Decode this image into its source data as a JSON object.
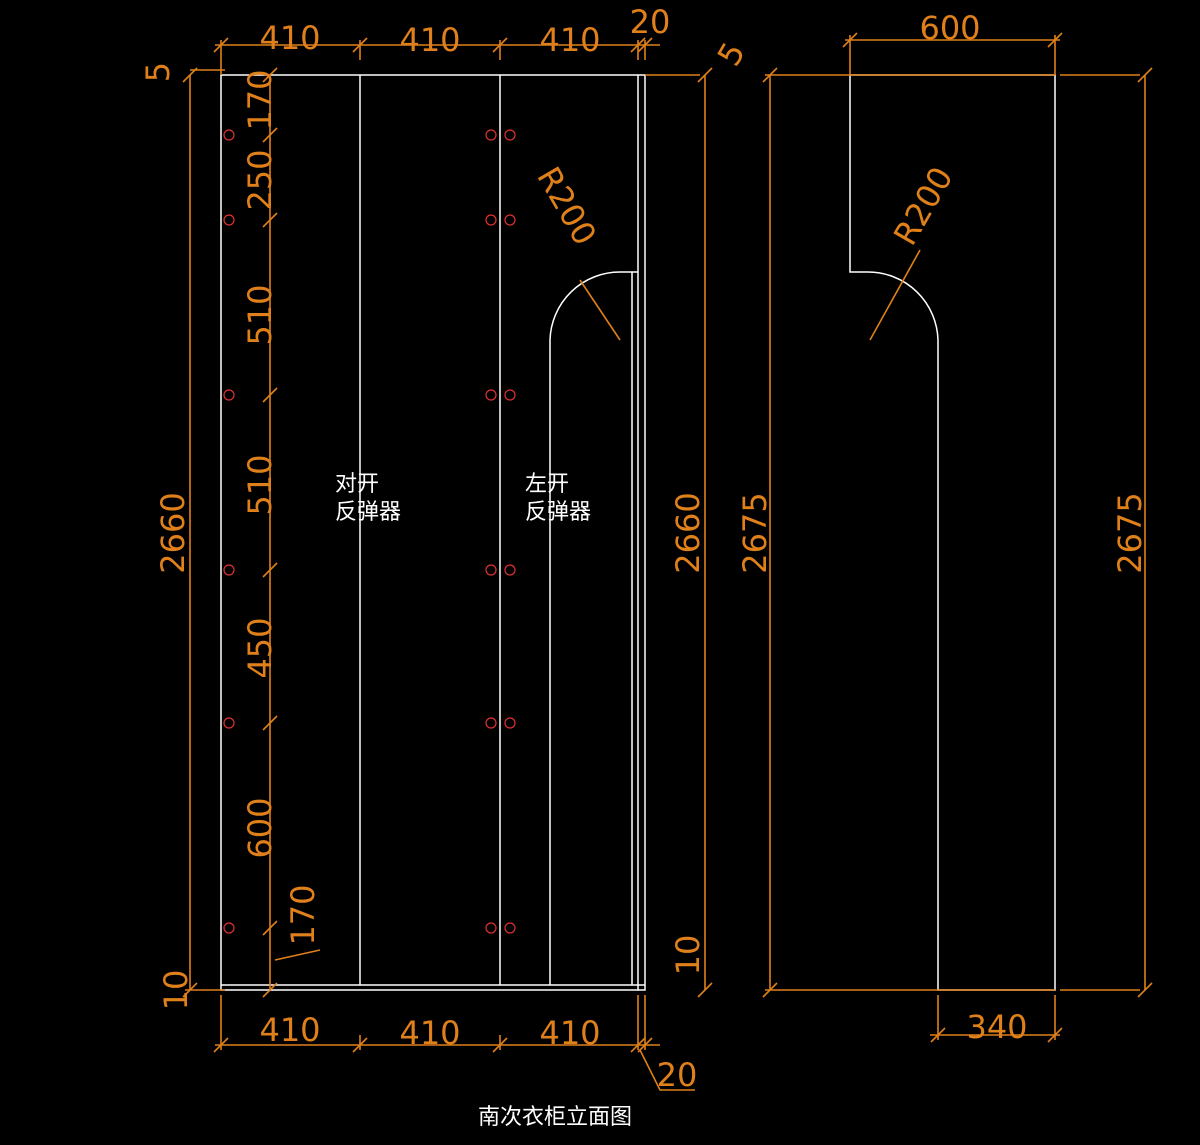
{
  "dimensions": [
    "410",
    "410",
    "410",
    "20",
    "600",
    "5",
    "170",
    "250",
    "510",
    "510",
    "450",
    "600",
    "170",
    "10",
    "2660",
    "2660",
    "2675",
    "2675",
    "5",
    "10",
    "410",
    "410",
    "410",
    "20",
    "340"
  ],
  "radius_labels": [
    "R200",
    "R200"
  ],
  "door_notes": [
    {
      "lines": [
        "对开",
        "反弹器"
      ]
    },
    {
      "lines": [
        "左开",
        "反弹器"
      ]
    }
  ],
  "title": "南次衣柜立面图"
}
